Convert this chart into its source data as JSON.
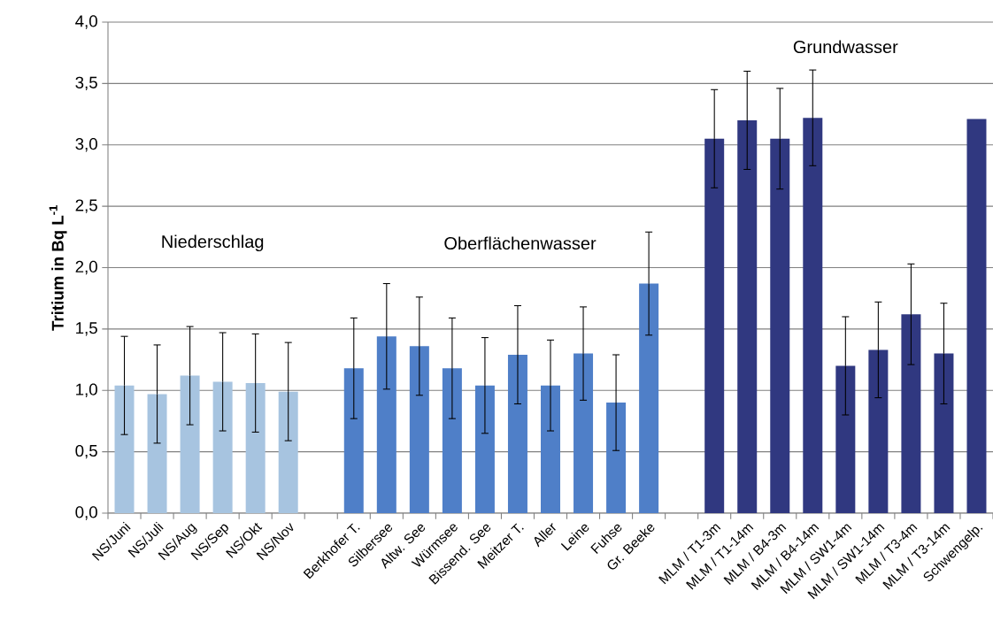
{
  "chart_data": {
    "type": "bar",
    "ylabel": "Tritium in Bq L$^{-1}$",
    "categories": [
      "NS/Juni",
      "NS/Juli",
      "NS/Aug",
      "NS/Sep",
      "NS/Okt",
      "NS/Nov",
      null,
      "Berkhofer T.",
      "Silbersee",
      "Altw. See",
      "Würmsee",
      "Bissend. See",
      "Meitzer T.",
      "Aller",
      "Leine",
      "Fuhse",
      "Gr. Beeke",
      null,
      "MLM / T1-3m",
      "MLM / T1-14m",
      "MLM / B4-3m",
      "MLM / B4-14m",
      "MLM / SW1-4m",
      "MLM / SW1-14m",
      "MLM / T3-4m",
      "MLM / T3-14m",
      "Schwengelp."
    ],
    "values": [
      1.04,
      0.97,
      1.12,
      1.07,
      1.06,
      0.99,
      null,
      1.18,
      1.44,
      1.36,
      1.18,
      1.04,
      1.29,
      1.04,
      1.3,
      0.9,
      1.87,
      null,
      3.05,
      3.2,
      3.05,
      3.22,
      1.2,
      1.33,
      1.62,
      1.3,
      3.21
    ],
    "errors": [
      0.4,
      0.4,
      0.4,
      0.4,
      0.4,
      0.4,
      null,
      0.41,
      0.43,
      0.4,
      0.41,
      0.39,
      0.4,
      0.37,
      0.38,
      0.39,
      0.42,
      null,
      0.4,
      0.4,
      0.41,
      0.39,
      0.4,
      0.39,
      0.41,
      0.41,
      null
    ],
    "colors": [
      "#a7c4e0",
      "#a7c4e0",
      "#a7c4e0",
      "#a7c4e0",
      "#a7c4e0",
      "#a7c4e0",
      null,
      "#4f7fc8",
      "#4f7fc8",
      "#4f7fc8",
      "#4f7fc8",
      "#4f7fc8",
      "#4f7fc8",
      "#4f7fc8",
      "#4f7fc8",
      "#4f7fc8",
      "#4f7fc8",
      null,
      "#303880",
      "#303880",
      "#303880",
      "#303880",
      "#303880",
      "#303880",
      "#303880",
      "#303880",
      "#303880"
    ],
    "ylim": [
      0,
      4
    ],
    "yticks": [
      {
        "value": 0,
        "label": "0,0"
      },
      {
        "value": 0.5,
        "label": "0,5"
      },
      {
        "value": 1,
        "label": "1,0"
      },
      {
        "value": 1.5,
        "label": "1,5"
      },
      {
        "value": 2,
        "label": "2,0"
      },
      {
        "value": 2.5,
        "label": "2,5"
      },
      {
        "value": 3,
        "label": "3,0"
      },
      {
        "value": 3.5,
        "label": "3,5"
      },
      {
        "value": 4,
        "label": "4,0"
      }
    ],
    "grid": "y",
    "annotations": [
      "Niederschlag",
      "Oberflächenwasser",
      "Grundwasser"
    ]
  }
}
